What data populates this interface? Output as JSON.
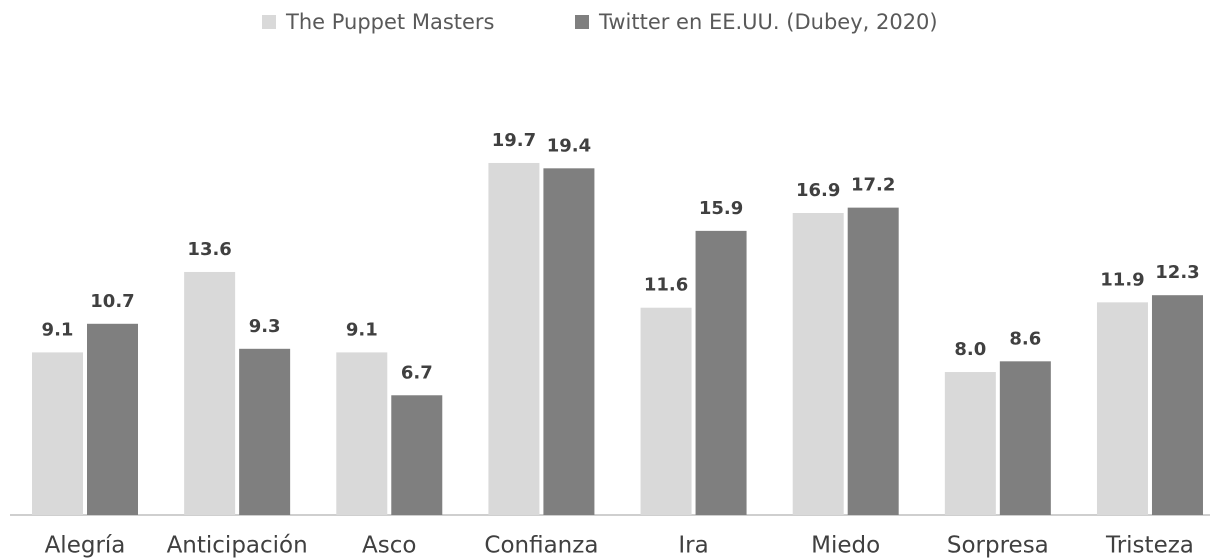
{
  "chart_data": {
    "type": "bar",
    "categories": [
      "Alegría",
      "Anticipación",
      "Asco",
      "Confianza",
      "Ira",
      "Miedo",
      "Sorpresa",
      "Tristeza"
    ],
    "series": [
      {
        "name": "The Puppet Masters",
        "color": "#d9d9d9",
        "values": [
          9.1,
          13.6,
          9.1,
          19.7,
          11.6,
          16.9,
          8.0,
          11.9
        ],
        "value_labels": [
          "9.1",
          "13.6",
          "9.1",
          "19.7",
          "11.6",
          "16.9",
          "8.0",
          "11.9"
        ]
      },
      {
        "name": "Twitter en EE.UU. (Dubey, 2020)",
        "color": "#7f7f7f",
        "values": [
          10.7,
          9.3,
          6.7,
          19.4,
          15.9,
          17.2,
          8.6,
          12.3
        ]
      }
    ],
    "legend": "top"
  }
}
